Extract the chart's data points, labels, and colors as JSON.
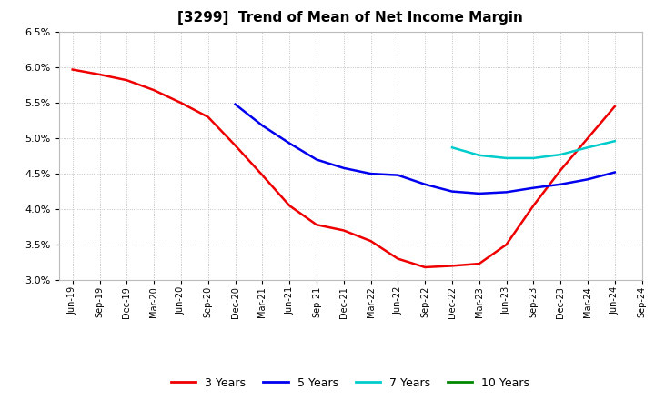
{
  "title": "[3299]  Trend of Mean of Net Income Margin",
  "title_fontsize": 11,
  "background_color": "#ffffff",
  "plot_bg_color": "#ffffff",
  "grid_color": "#aaaaaa",
  "ylim": [
    0.03,
    0.065
  ],
  "yticks": [
    0.03,
    0.035,
    0.04,
    0.045,
    0.05,
    0.055,
    0.06,
    0.065
  ],
  "x_labels": [
    "Jun-19",
    "Sep-19",
    "Dec-19",
    "Mar-20",
    "Jun-20",
    "Sep-20",
    "Dec-20",
    "Mar-21",
    "Jun-21",
    "Sep-21",
    "Dec-21",
    "Mar-22",
    "Jun-22",
    "Sep-22",
    "Dec-22",
    "Mar-23",
    "Jun-23",
    "Sep-23",
    "Dec-23",
    "Mar-24",
    "Jun-24",
    "Sep-24"
  ],
  "series": {
    "3 Years": {
      "color": "#ee0000",
      "linewidth": 1.8,
      "data_x": [
        0,
        1,
        2,
        3,
        4,
        5,
        6,
        7,
        8,
        9,
        10,
        11,
        12,
        13,
        14,
        15,
        16,
        17,
        18,
        19,
        20
      ],
      "data_y": [
        0.0597,
        0.059,
        0.0582,
        0.0568,
        0.055,
        0.053,
        0.049,
        0.0448,
        0.0405,
        0.0378,
        0.037,
        0.0355,
        0.033,
        0.0318,
        0.032,
        0.0323,
        0.035,
        0.0405,
        0.0455,
        0.05,
        0.0545
      ]
    },
    "5 Years": {
      "color": "#0000ee",
      "linewidth": 1.8,
      "data_x": [
        6,
        7,
        8,
        9,
        10,
        11,
        12,
        13,
        14,
        15,
        16,
        17,
        18,
        19,
        20
      ],
      "data_y": [
        0.0548,
        0.0518,
        0.0493,
        0.047,
        0.0458,
        0.045,
        0.0448,
        0.0435,
        0.0425,
        0.0422,
        0.0424,
        0.043,
        0.0435,
        0.0442,
        0.0452
      ]
    },
    "7 Years": {
      "color": "#00cccc",
      "linewidth": 1.8,
      "data_x": [
        14,
        15,
        16,
        17,
        18,
        19,
        20
      ],
      "data_y": [
        0.0487,
        0.0476,
        0.0472,
        0.0472,
        0.0477,
        0.0487,
        0.0496
      ]
    },
    "10 Years": {
      "color": "#008800",
      "linewidth": 1.8,
      "data_x": [],
      "data_y": []
    }
  },
  "legend_labels": [
    "3 Years",
    "5 Years",
    "7 Years",
    "10 Years"
  ],
  "legend_colors": [
    "#ee0000",
    "#0000ee",
    "#00cccc",
    "#008800"
  ]
}
